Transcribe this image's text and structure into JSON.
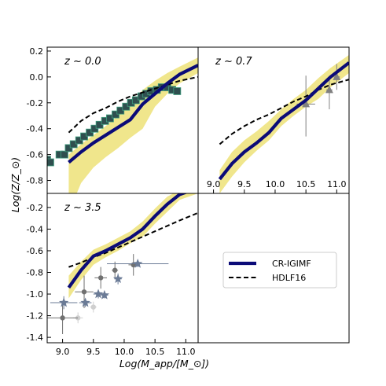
{
  "chart_data": {
    "type": "line",
    "xlabel": "Log(M_app/[M_⊙])",
    "ylabel": "Log(Z/Z_⊙)",
    "legend": {
      "placement": "lower-right panel",
      "entries": [
        {
          "name": "CR-IGIMF",
          "color": "#0b0b78",
          "style": "solid"
        },
        {
          "name": "HDLF16",
          "color": "#000000",
          "style": "dashed"
        }
      ]
    },
    "colors": {
      "cr_igimf": "#0b0b78",
      "hdlf16": "#000000",
      "band": "#f0e68c",
      "squares_fill": "#2f4f4f",
      "squares_edge": "#40a080",
      "triangles": "#808080",
      "stars": "#6b7b96",
      "dots_dark": "#707070",
      "dots_light": "#cfcfcf"
    },
    "panels": [
      {
        "id": "top-left",
        "label": "z ~ 0.0",
        "xlim": [
          8.75,
          11.2
        ],
        "ylim": [
          -0.9,
          0.23
        ],
        "yticks": [
          "0.2",
          "0.0",
          "-0.2",
          "-0.4",
          "-0.6",
          "-0.8"
        ],
        "yticks_values": [
          0.2,
          0.0,
          -0.2,
          -0.4,
          -0.6,
          -0.8
        ],
        "band": {
          "x": [
            9.1,
            9.3,
            9.5,
            9.7,
            9.9,
            10.1,
            10.3,
            10.5,
            10.7,
            10.9,
            11.2
          ],
          "upper": [
            -0.6,
            -0.52,
            -0.45,
            -0.38,
            -0.3,
            -0.22,
            -0.1,
            -0.03,
            0.03,
            0.08,
            0.15
          ],
          "lower": [
            -1.05,
            -0.82,
            -0.7,
            -0.62,
            -0.55,
            -0.47,
            -0.4,
            -0.23,
            -0.13,
            -0.05,
            0.03
          ]
        },
        "cr_igimf": {
          "x": [
            9.1,
            9.3,
            9.5,
            9.7,
            9.9,
            10.1,
            10.3,
            10.5,
            10.7,
            10.9,
            11.2
          ],
          "y": [
            -0.66,
            -0.58,
            -0.51,
            -0.45,
            -0.39,
            -0.33,
            -0.21,
            -0.13,
            -0.05,
            0.02,
            0.09
          ]
        },
        "hdlf16": {
          "x": [
            9.1,
            9.3,
            9.5,
            9.7,
            9.9,
            10.1,
            10.3,
            10.5,
            10.7,
            10.9,
            11.2
          ],
          "y": [
            -0.43,
            -0.34,
            -0.28,
            -0.24,
            -0.19,
            -0.15,
            -0.12,
            -0.09,
            -0.06,
            -0.03,
            0.0
          ]
        },
        "squares": {
          "x": [
            8.75,
            8.8,
            8.95,
            9.03,
            9.1,
            9.18,
            9.27,
            9.35,
            9.44,
            9.52,
            9.6,
            9.69,
            9.77,
            9.86,
            9.94,
            10.03,
            10.11,
            10.19,
            10.28,
            10.36,
            10.44,
            10.53,
            10.61,
            10.7,
            10.78,
            10.86
          ],
          "y": [
            -0.64,
            -0.66,
            -0.6,
            -0.6,
            -0.55,
            -0.52,
            -0.49,
            -0.46,
            -0.43,
            -0.4,
            -0.37,
            -0.34,
            -0.32,
            -0.29,
            -0.26,
            -0.23,
            -0.2,
            -0.18,
            -0.15,
            -0.13,
            -0.11,
            -0.1,
            -0.08,
            -0.08,
            -0.1,
            -0.11
          ]
        }
      },
      {
        "id": "top-right",
        "label": "z ~ 0.7",
        "xlim": [
          8.75,
          11.2
        ],
        "ylim": [
          -0.9,
          0.23
        ],
        "xticks": [
          "9.0",
          "9.5",
          "10.0",
          "10.5",
          "11.0"
        ],
        "xticks_values": [
          9.0,
          9.5,
          10.0,
          10.5,
          11.0
        ],
        "band": {
          "x": [
            9.1,
            9.3,
            9.5,
            9.7,
            9.9,
            10.1,
            10.3,
            10.5,
            10.7,
            10.9,
            11.2
          ],
          "upper": [
            -0.72,
            -0.58,
            -0.49,
            -0.42,
            -0.34,
            -0.25,
            -0.17,
            -0.1,
            -0.01,
            0.07,
            0.17
          ],
          "lower": [
            -0.9,
            -0.77,
            -0.66,
            -0.57,
            -0.49,
            -0.38,
            -0.3,
            -0.23,
            -0.17,
            -0.08,
            0.03
          ]
        },
        "cr_igimf": {
          "x": [
            9.1,
            9.3,
            9.5,
            9.7,
            9.9,
            10.1,
            10.3,
            10.5,
            10.7,
            10.9,
            11.2
          ],
          "y": [
            -0.79,
            -0.67,
            -0.58,
            -0.51,
            -0.43,
            -0.32,
            -0.25,
            -0.18,
            -0.09,
            0.0,
            0.11
          ]
        },
        "hdlf16": {
          "x": [
            9.1,
            9.3,
            9.5,
            9.7,
            9.9,
            10.1,
            10.3,
            10.5,
            10.7,
            10.9,
            11.2
          ],
          "y": [
            -0.52,
            -0.44,
            -0.38,
            -0.33,
            -0.29,
            -0.24,
            -0.19,
            -0.15,
            -0.1,
            -0.06,
            -0.02
          ]
        },
        "triangles": [
          {
            "x": 10.5,
            "y": -0.21,
            "xerr": 0.15,
            "yerr_low": 0.25,
            "yerr_high": 0.22
          },
          {
            "x": 10.88,
            "y": -0.1,
            "xerr": 0.05,
            "yerr_low": 0.15,
            "yerr_high": 0.1
          },
          {
            "x": 11.0,
            "y": 0.0,
            "xerr": 0.05,
            "yerr_low": 0.1,
            "yerr_high": 0.1
          }
        ]
      },
      {
        "id": "bottom-left",
        "label": "z ~ 3.5",
        "xlim": [
          8.75,
          11.2
        ],
        "ylim": [
          -1.45,
          -0.07
        ],
        "xticks": [
          "9.0",
          "9.5",
          "10.0",
          "10.5",
          "11.0"
        ],
        "xticks_values": [
          9.0,
          9.5,
          10.0,
          10.5,
          11.0
        ],
        "yticks": [
          "-0.2",
          "-0.4",
          "-0.6",
          "-0.8",
          "-1.0",
          "-1.2",
          "-1.4"
        ],
        "yticks_values": [
          -0.2,
          -0.4,
          -0.6,
          -0.8,
          -1.0,
          -1.2,
          -1.4
        ],
        "band": {
          "x": [
            9.1,
            9.3,
            9.5,
            9.7,
            9.9,
            10.1,
            10.3,
            10.5,
            10.7,
            10.9,
            11.2
          ],
          "upper": [
            -0.83,
            -0.7,
            -0.59,
            -0.54,
            -0.48,
            -0.42,
            -0.33,
            -0.21,
            -0.1,
            -0.04,
            0.0
          ],
          "lower": [
            -1.04,
            -0.87,
            -0.73,
            -0.66,
            -0.6,
            -0.53,
            -0.47,
            -0.35,
            -0.24,
            -0.13,
            -0.07
          ]
        },
        "cr_igimf": {
          "x": [
            9.1,
            9.3,
            9.5,
            9.7,
            9.9,
            10.1,
            10.3,
            10.5,
            10.7,
            10.9,
            11.2
          ],
          "y": [
            -0.94,
            -0.78,
            -0.65,
            -0.6,
            -0.54,
            -0.48,
            -0.4,
            -0.28,
            -0.17,
            -0.08,
            -0.02
          ]
        },
        "hdlf16": {
          "x": [
            9.1,
            9.3,
            9.5,
            9.7,
            9.9,
            10.1,
            10.3,
            10.5,
            10.7,
            10.9,
            11.2
          ],
          "y": [
            -0.75,
            -0.71,
            -0.66,
            -0.62,
            -0.57,
            -0.52,
            -0.47,
            -0.42,
            -0.37,
            -0.32,
            -0.25
          ]
        },
        "stars": [
          {
            "x": 9.02,
            "y": -1.08,
            "xerr": 0.22,
            "yerr": 0.06
          },
          {
            "x": 9.37,
            "y": -1.08,
            "xerr": 0.1,
            "yerr": 0.04
          },
          {
            "x": 9.58,
            "y": -1.0,
            "xerr": 0.08,
            "yerr": 0.04
          },
          {
            "x": 9.68,
            "y": -1.01,
            "xerr": 0.06,
            "yerr": 0.03
          },
          {
            "x": 9.9,
            "y": -0.86,
            "xerr": 0.06,
            "yerr": 0.05
          },
          {
            "x": 10.22,
            "y": -0.72,
            "xerr": 0.5,
            "yerr": 0.03
          }
        ],
        "dots_dark": [
          {
            "x": 9.0,
            "y": -1.22,
            "xerr": 0.25,
            "yerr": 0.15
          },
          {
            "x": 9.35,
            "y": -0.98,
            "xerr": 0.15,
            "yerr": 0.15
          },
          {
            "x": 9.62,
            "y": -0.85,
            "xerr": 0.1,
            "yerr": 0.1
          },
          {
            "x": 9.85,
            "y": -0.78,
            "xerr": 0.05,
            "yerr": 0.08
          },
          {
            "x": 10.15,
            "y": -0.73,
            "xerr": 0.08,
            "yerr": 0.1
          }
        ],
        "dots_light": [
          {
            "x": 9.25,
            "y": -1.22,
            "xerr": 0.08,
            "yerr": 0.05
          },
          {
            "x": 9.5,
            "y": -1.12,
            "xerr": 0.05,
            "yerr": 0.05
          }
        ]
      }
    ]
  }
}
